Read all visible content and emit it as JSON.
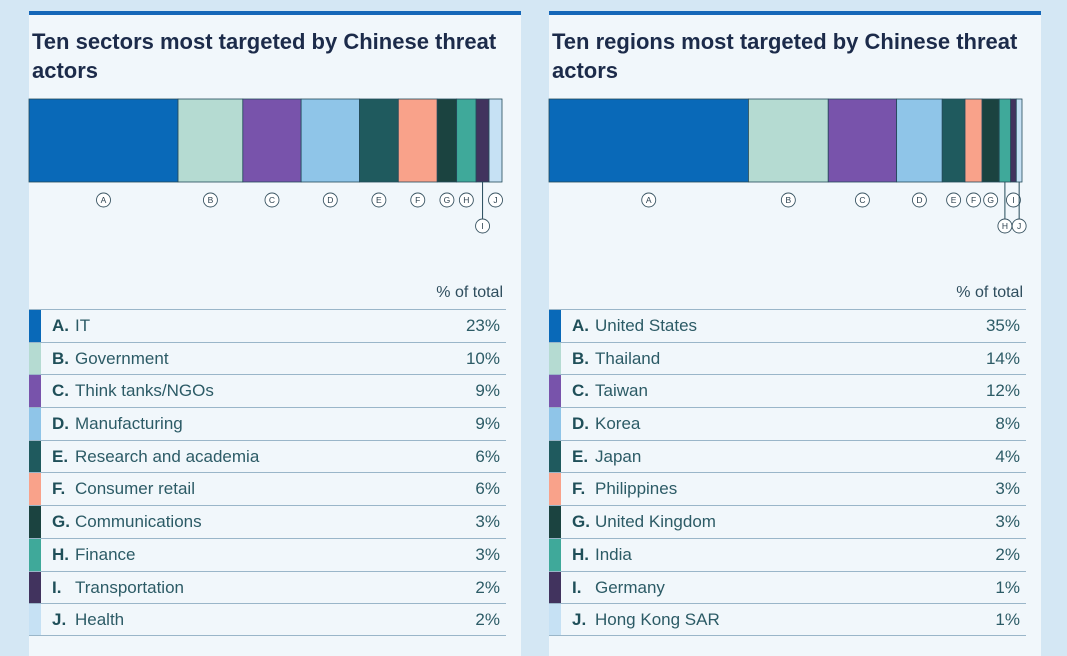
{
  "charts": [
    {
      "title": "Ten sectors most targeted by Chinese threat actors",
      "column_header": "% of total",
      "items": [
        {
          "letter": "A.",
          "name": "IT",
          "value": "23%"
        },
        {
          "letter": "B.",
          "name": "Government",
          "value": "10%"
        },
        {
          "letter": "C.",
          "name": "Think tanks/NGOs",
          "value": "9%"
        },
        {
          "letter": "D.",
          "name": "Manufacturing",
          "value": "9%"
        },
        {
          "letter": "E.",
          "name": "Research and academia",
          "value": "6%"
        },
        {
          "letter": "F.",
          "name": "Consumer retail",
          "value": "6%"
        },
        {
          "letter": "G.",
          "name": "Communications",
          "value": "3%"
        },
        {
          "letter": "H.",
          "name": "Finance",
          "value": "3%"
        },
        {
          "letter": "I.",
          "name": "Transportation",
          "value": "2%"
        },
        {
          "letter": "J.",
          "name": "Health",
          "value": "2%"
        }
      ]
    },
    {
      "title": "Ten regions most targeted by Chinese threat actors",
      "column_header": "% of total",
      "items": [
        {
          "letter": "A.",
          "name": "United States",
          "value": "35%"
        },
        {
          "letter": "B.",
          "name": "Thailand",
          "value": "14%"
        },
        {
          "letter": "C.",
          "name": "Taiwan",
          "value": "12%"
        },
        {
          "letter": "D.",
          "name": "Korea",
          "value": "8%"
        },
        {
          "letter": "E.",
          "name": "Japan",
          "value": "4%"
        },
        {
          "letter": "F.",
          "name": "Philippines",
          "value": "3%"
        },
        {
          "letter": "G.",
          "name": "United Kingdom",
          "value": "3%"
        },
        {
          "letter": "H.",
          "name": "India",
          "value": "2%"
        },
        {
          "letter": "I.",
          "name": "Germany",
          "value": "1%"
        },
        {
          "letter": "J.",
          "name": "Hong Kong SAR",
          "value": "1%"
        }
      ]
    }
  ],
  "colors": [
    "#0969b8",
    "#b5dbd2",
    "#7853ab",
    "#8fc5e8",
    "#1f5a5e",
    "#f9a28a",
    "#1b4340",
    "#3fa99a",
    "#41335e",
    "#c6e1f4"
  ],
  "chart_data": [
    {
      "type": "bar",
      "orientation": "stacked-horizontal",
      "title": "Ten sectors most targeted by Chinese threat actors",
      "categories": [
        "IT",
        "Government",
        "Think tanks/NGOs",
        "Manufacturing",
        "Research and academia",
        "Consumer retail",
        "Communications",
        "Finance",
        "Transportation",
        "Health"
      ],
      "bar_letters": [
        "A",
        "B",
        "C",
        "D",
        "E",
        "F",
        "G",
        "H",
        "I",
        "J"
      ],
      "values": [
        23,
        10,
        9,
        9,
        6,
        6,
        3,
        3,
        2,
        2
      ],
      "ylabel": "% of total"
    },
    {
      "type": "bar",
      "orientation": "stacked-horizontal",
      "title": "Ten regions most targeted by Chinese threat actors",
      "categories": [
        "United States",
        "Thailand",
        "Taiwan",
        "Korea",
        "Japan",
        "Philippines",
        "United Kingdom",
        "India",
        "Germany",
        "Hong Kong SAR"
      ],
      "bar_letters": [
        "A",
        "B",
        "C",
        "D",
        "E",
        "F",
        "G",
        "H",
        "I",
        "J"
      ],
      "values": [
        35,
        14,
        12,
        8,
        4,
        3,
        3,
        2,
        1,
        1
      ],
      "ylabel": "% of total"
    }
  ]
}
